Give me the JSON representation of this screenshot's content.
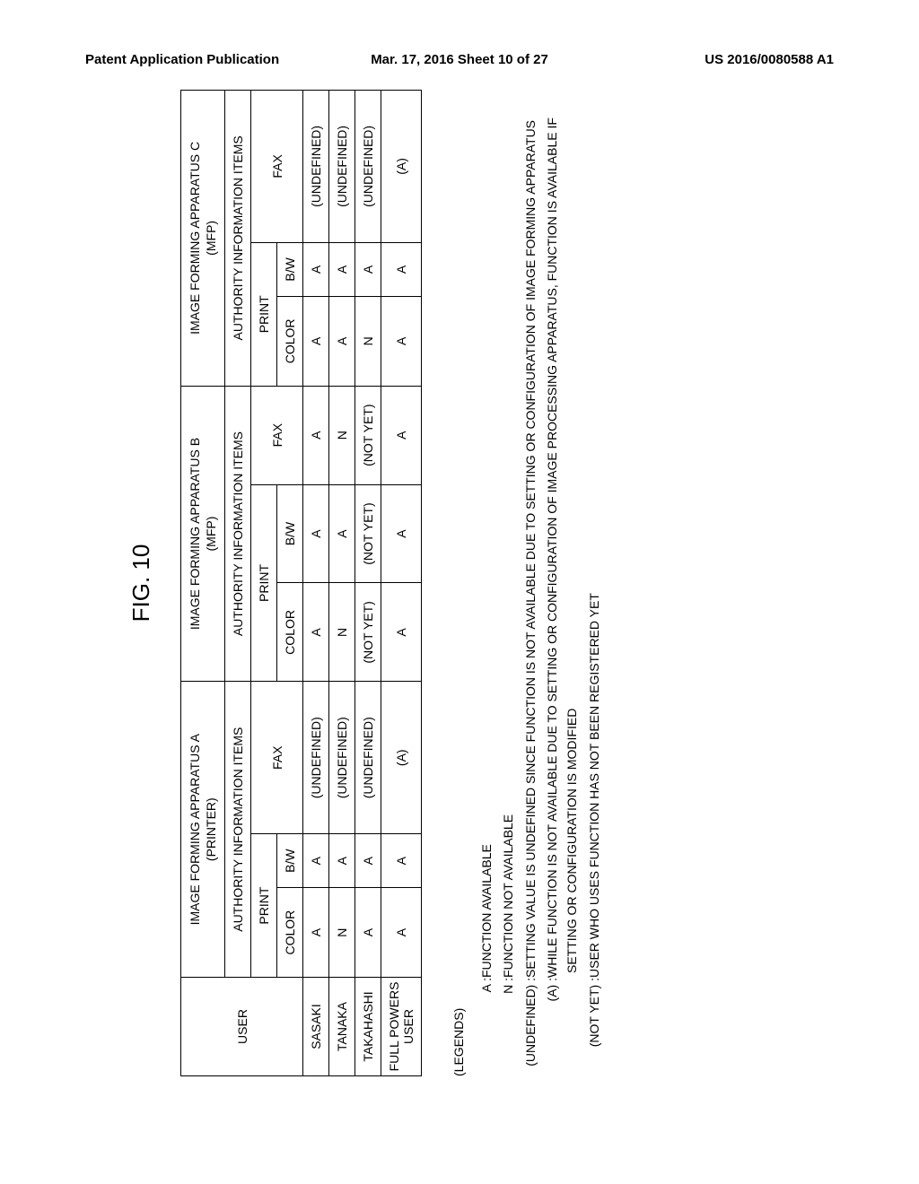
{
  "header": {
    "left": "Patent Application Publication",
    "center": "Mar. 17, 2016  Sheet 10 of 27",
    "right": "US 2016/0080588 A1"
  },
  "figure": {
    "title": "FIG. 10",
    "table": {
      "user_header": "USER",
      "apparatus": [
        {
          "name": "IMAGE FORMING APPARATUS A",
          "type": "(PRINTER)"
        },
        {
          "name": "IMAGE FORMING APPARATUS B",
          "type": "(MFP)"
        },
        {
          "name": "IMAGE FORMING APPARATUS C",
          "type": "(MFP)"
        }
      ],
      "authority_label": "AUTHORITY INFORMATION ITEMS",
      "print_label": "PRINT",
      "fax_label": "FAX",
      "color_label": "COLOR",
      "bw_label": "B/W",
      "rows": [
        {
          "user": "SASAKI",
          "a_color": "A",
          "a_bw": "A",
          "a_fax": "(UNDEFINED)",
          "b_color": "A",
          "b_bw": "A",
          "b_fax": "A",
          "c_color": "A",
          "c_bw": "A",
          "c_fax": "(UNDEFINED)"
        },
        {
          "user": "TANAKA",
          "a_color": "N",
          "a_bw": "A",
          "a_fax": "(UNDEFINED)",
          "b_color": "N",
          "b_bw": "A",
          "b_fax": "N",
          "c_color": "A",
          "c_bw": "A",
          "c_fax": "(UNDEFINED)"
        },
        {
          "user": "TAKAHASHI",
          "a_color": "A",
          "a_bw": "A",
          "a_fax": "(UNDEFINED)",
          "b_color": "(NOT YET)",
          "b_bw": "(NOT YET)",
          "b_fax": "(NOT YET)",
          "c_color": "N",
          "c_bw": "A",
          "c_fax": "(UNDEFINED)"
        },
        {
          "user": "FULL POWERS USER",
          "a_color": "A",
          "a_bw": "A",
          "a_fax": "(A)",
          "b_color": "A",
          "b_bw": "A",
          "b_fax": "A",
          "c_color": "A",
          "c_bw": "A",
          "c_fax": "(A)"
        }
      ]
    },
    "legends": {
      "title": "(LEGENDS)",
      "entries": [
        {
          "key": "A :",
          "text": "FUNCTION AVAILABLE"
        },
        {
          "key": "N :",
          "text": "FUNCTION NOT AVAILABLE"
        },
        {
          "key": "(UNDEFINED) :",
          "text": "SETTING VALUE IS UNDEFINED SINCE FUNCTION IS NOT AVAILABLE DUE TO SETTING OR CONFIGURATION OF IMAGE FORMING APPARATUS"
        },
        {
          "key": "(A) :",
          "text": "WHILE FUNCTION IS NOT AVAILABLE DUE TO SETTING OR CONFIGURATION OF IMAGE PROCESSING APPARATUS, FUNCTION IS AVAILABLE IF SETTING OR CONFIGURATION IS MODIFIED"
        },
        {
          "key": "(NOT YET) :",
          "text": "USER WHO USES FUNCTION HAS NOT BEEN REGISTERED YET"
        }
      ]
    }
  },
  "style": {
    "border_color": "#000000",
    "background": "#ffffff",
    "text_color": "#000000"
  }
}
